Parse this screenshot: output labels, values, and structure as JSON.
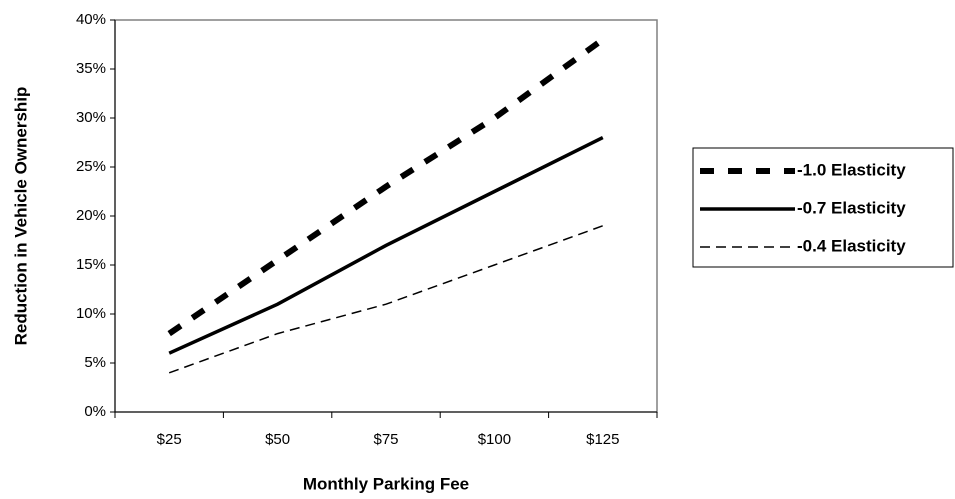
{
  "chart_data": {
    "type": "line",
    "x_label": "Monthly Parking Fee",
    "y_label": "Reduction in Vehicle Ownership",
    "categories": [
      "$25",
      "$50",
      "$75",
      "$100",
      "$125"
    ],
    "series": [
      {
        "name": "-1.0 Elasticity",
        "color": "#000000",
        "values": [
          8,
          15.5,
          23,
          30,
          38
        ]
      },
      {
        "name": "-0.7 Elasticity",
        "color": "#000000",
        "values": [
          6,
          11,
          17,
          22.5,
          28
        ]
      },
      {
        "name": "-0.4 Elasticity",
        "color": "#000000",
        "values": [
          4,
          8,
          11,
          15,
          19
        ]
      }
    ],
    "ylim": [
      0,
      40
    ],
    "yticks": [
      {
        "value": 0,
        "label": "0%"
      },
      {
        "value": 5,
        "label": "5%"
      },
      {
        "value": 10,
        "label": "10%"
      },
      {
        "value": 15,
        "label": "15%"
      },
      {
        "value": 20,
        "label": "20%"
      },
      {
        "value": 25,
        "label": "25%"
      },
      {
        "value": 30,
        "label": "30%"
      },
      {
        "value": 35,
        "label": "35%"
      },
      {
        "value": 40,
        "label": "40%"
      }
    ],
    "grid": false,
    "legend": "right"
  }
}
